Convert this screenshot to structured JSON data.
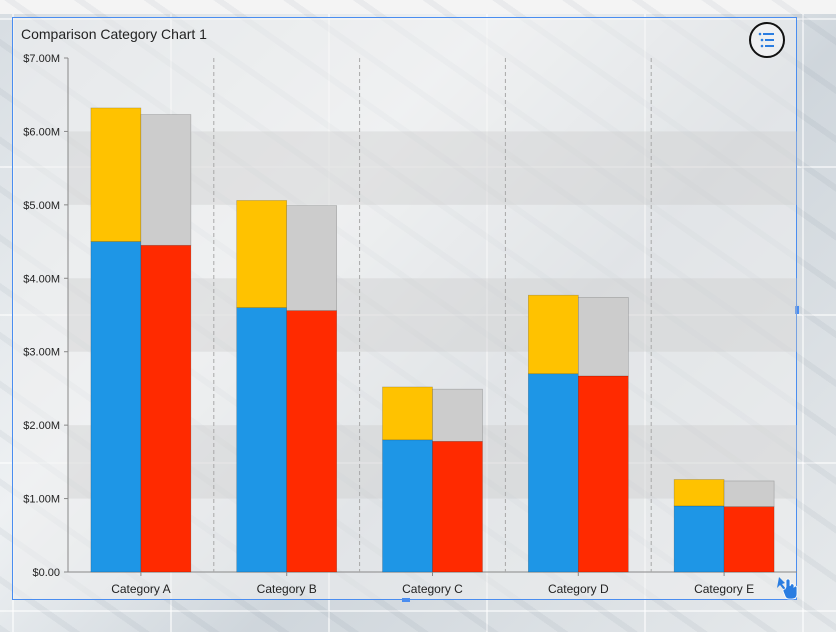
{
  "widget": {
    "title": "Comparison Category Chart 1"
  },
  "icons": {
    "menu": "list-menu-icon",
    "cursor": "hand-pointer-icon"
  },
  "chart_data": {
    "type": "bar",
    "stacked": true,
    "grouped": true,
    "title": "Comparison Category Chart 1",
    "categories": [
      "Category A",
      "Category B",
      "Category C",
      "Category D",
      "Category E"
    ],
    "ylim": [
      0,
      7000000
    ],
    "yticks": [
      "$0.00",
      "$1.00M",
      "$2.00M",
      "$3.00M",
      "$4.00M",
      "$5.00M",
      "$6.00M",
      "$7.00M"
    ],
    "groups": [
      {
        "segments": [
          {
            "color": "#1e96e6",
            "values": [
              4500000,
              3600000,
              1800000,
              2700000,
              900000
            ]
          },
          {
            "color": "#ffc200",
            "values": [
              1820000,
              1460000,
              720000,
              1070000,
              360000
            ]
          }
        ]
      },
      {
        "segments": [
          {
            "color": "#ff2a00",
            "values": [
              4450000,
              3560000,
              1780000,
              2670000,
              890000
            ]
          },
          {
            "color": "#cccccc",
            "values": [
              1780000,
              1430000,
              710000,
              1070000,
              350000
            ]
          }
        ]
      }
    ],
    "grid": true
  }
}
